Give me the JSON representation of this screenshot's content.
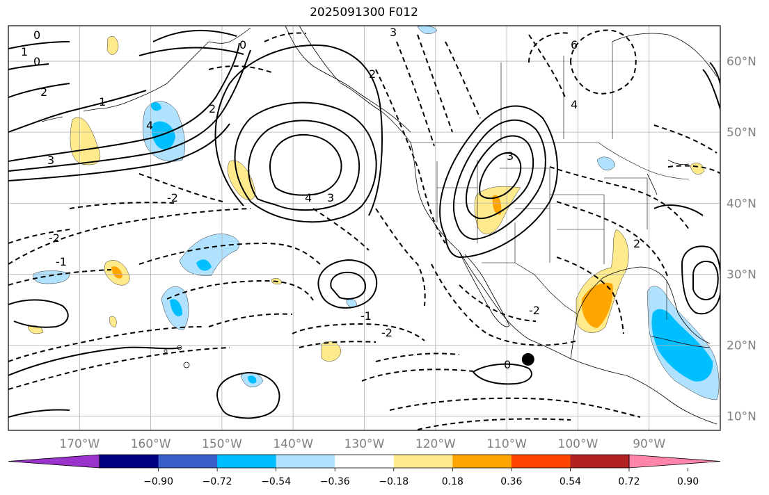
{
  "title": "2025091300 F012",
  "map": {
    "lon_range": [
      -180,
      -80
    ],
    "lat_range": [
      8,
      65
    ],
    "lon_ticks": [
      {
        "value": -170,
        "label": "170°W"
      },
      {
        "value": -160,
        "label": "160°W"
      },
      {
        "value": -150,
        "label": "150°W"
      },
      {
        "value": -140,
        "label": "140°W"
      },
      {
        "value": -130,
        "label": "130°W"
      },
      {
        "value": -120,
        "label": "120°W"
      },
      {
        "value": -110,
        "label": "110°W"
      },
      {
        "value": -100,
        "label": "100°W"
      },
      {
        "value": -90,
        "label": "90°W"
      }
    ],
    "lat_ticks": [
      {
        "value": 60,
        "label": "60°N"
      },
      {
        "value": 50,
        "label": "50°N"
      },
      {
        "value": 40,
        "label": "40°N"
      },
      {
        "value": 30,
        "label": "30°N"
      },
      {
        "value": 20,
        "label": "20°N"
      },
      {
        "value": 10,
        "label": "10°N"
      }
    ],
    "grid": true,
    "marker": {
      "lon": -107,
      "lat": 18
    }
  },
  "colorbar": {
    "colors": [
      "#9933cc",
      "#000080",
      "#3a5fcd",
      "#00bfff",
      "#b0e2ff",
      "#ffffff",
      "#ffeb8c",
      "#ffa500",
      "#ff4500",
      "#b22222",
      "#ff85aa"
    ],
    "tick_labels": [
      "−0.90",
      "−0.72",
      "−0.54",
      "−0.36",
      "−0.18",
      "0.18",
      "0.36",
      "0.54",
      "0.72",
      "0.90"
    ]
  },
  "contour_labels": [
    "0",
    "0",
    "0",
    "0",
    "1",
    "1",
    "2",
    "2",
    "2",
    "2",
    "3",
    "3",
    "3",
    "3",
    "4",
    "4",
    "4",
    "6",
    "-1",
    "-1",
    "-2",
    "-2",
    "-2",
    "-2"
  ]
}
